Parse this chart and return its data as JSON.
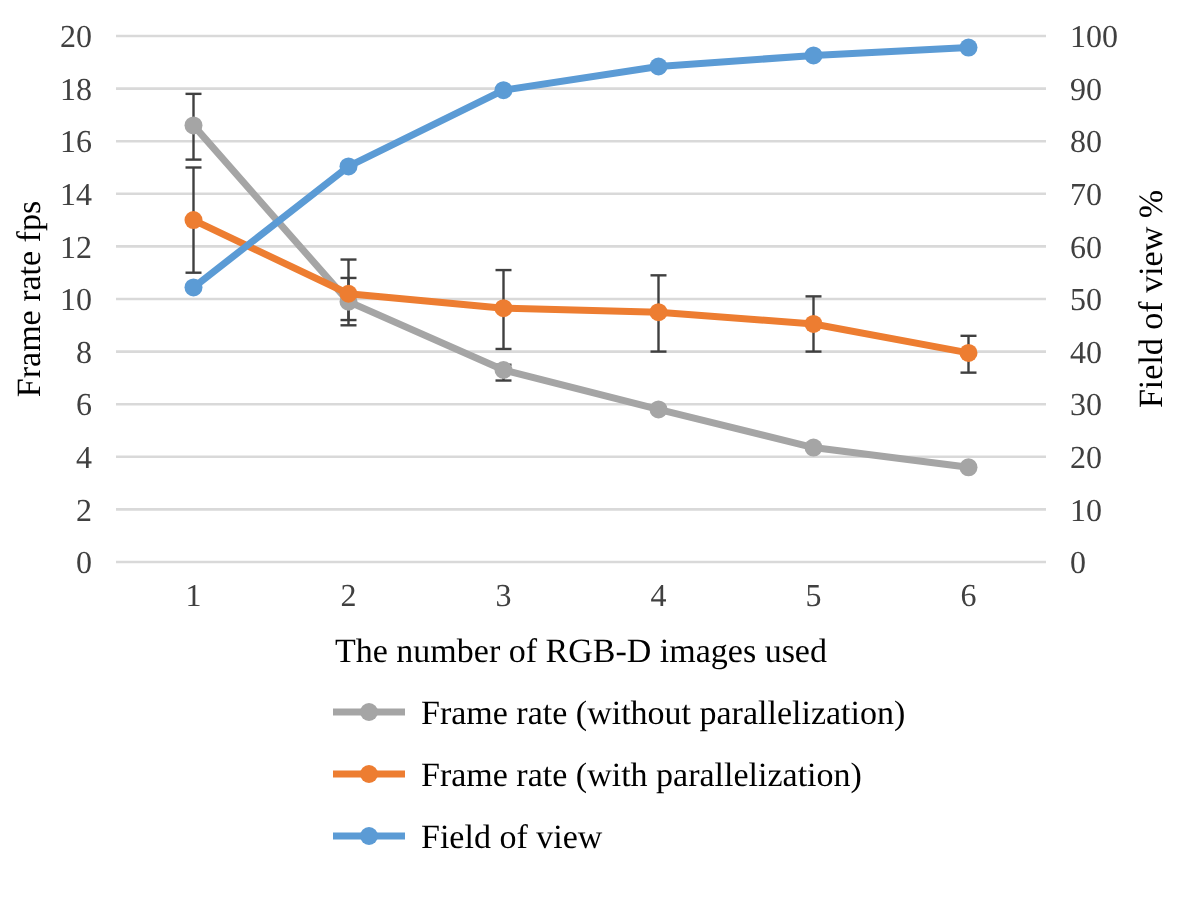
{
  "chart_data": {
    "type": "line",
    "xlabel": "The number of RGB-D images used",
    "ylabel": "Frame rate fps",
    "y2label": "Field of view %",
    "categories": [
      "1",
      "2",
      "3",
      "4",
      "5",
      "6"
    ],
    "ylim": [
      0,
      20
    ],
    "yticks": [
      0,
      2,
      4,
      6,
      8,
      10,
      12,
      14,
      16,
      18,
      20
    ],
    "y2lim": [
      0,
      100
    ],
    "y2ticks": [
      0,
      10,
      20,
      30,
      40,
      50,
      60,
      70,
      80,
      90,
      100
    ],
    "grid": "y",
    "legend": "bottom",
    "marker": "circle",
    "line_style": "solid",
    "series": [
      {
        "name": "Frame rate (without parallelization)",
        "color": "#a5a5a5",
        "values": [
          16.6,
          9.9,
          7.3,
          5.8,
          4.35,
          3.6
        ],
        "errors": [
          [
            15.3,
            17.8
          ],
          [
            9.0,
            10.8
          ],
          [
            6.9,
            7.5
          ],
          null,
          null,
          null
        ]
      },
      {
        "name": "Frame rate (with parallelization)",
        "color": "#ed7d31",
        "values": [
          13.0,
          10.2,
          9.65,
          9.5,
          9.05,
          7.95
        ],
        "errors": [
          [
            11.0,
            15.0
          ],
          [
            9.2,
            11.5
          ],
          [
            8.1,
            11.1
          ],
          [
            8.0,
            10.9
          ],
          [
            8.0,
            10.1
          ],
          [
            7.2,
            8.6
          ]
        ]
      },
      {
        "name": "Field of view",
        "color": "#5b9bd5",
        "axis": "y2",
        "values": [
          52.2,
          75.2,
          89.7,
          94.2,
          96.3,
          97.8
        ]
      }
    ]
  }
}
